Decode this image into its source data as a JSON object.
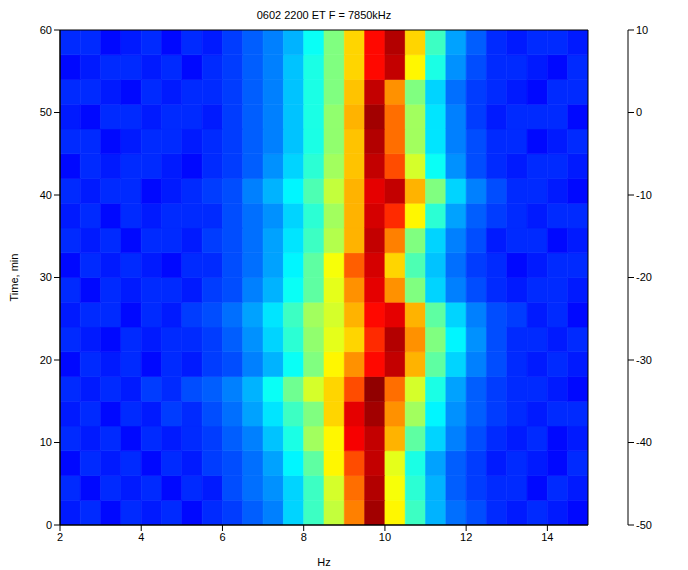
{
  "chart_data": {
    "type": "heatmap",
    "title": "0602 2200 ET F = 7850kHz",
    "x_label": "Hz",
    "y_label": "Time, min",
    "xlim": [
      2,
      15
    ],
    "xticks": [
      2,
      4,
      6,
      8,
      10,
      12,
      14
    ],
    "ylim": [
      0,
      60
    ],
    "yticks": [
      0,
      10,
      20,
      30,
      40,
      50,
      60
    ],
    "x_edges": [
      2,
      2.5,
      3,
      3.5,
      4,
      4.5,
      5,
      5.5,
      6,
      6.5,
      7,
      7.5,
      8,
      8.5,
      9,
      9.5,
      10,
      10.5,
      11,
      11.5,
      12,
      12.5,
      13,
      13.5,
      14,
      14.5,
      15
    ],
    "y_edges": [
      0,
      3,
      6,
      9,
      12,
      15,
      18,
      21,
      24,
      27,
      30,
      33,
      36,
      39,
      42,
      45,
      48,
      51,
      54,
      57,
      60
    ],
    "cells": [
      [
        -41,
        -40,
        -42,
        -40,
        -41,
        -40,
        -42,
        -40,
        -39,
        -37,
        -35,
        -30,
        -24,
        -16,
        -5,
        8,
        -12,
        -24,
        -32,
        -36,
        -38,
        -40,
        -41,
        -40,
        -41,
        -42
      ],
      [
        -40,
        -42,
        -40,
        -41,
        -40,
        -42,
        -40,
        -41,
        -38,
        -36,
        -34,
        -30,
        -24,
        -15,
        -4,
        7,
        -13,
        -25,
        -32,
        -37,
        -39,
        -40,
        -40,
        -42,
        -40,
        -41
      ],
      [
        -42,
        -40,
        -41,
        -40,
        -42,
        -40,
        -41,
        -39,
        -38,
        -36,
        -33,
        -28,
        -22,
        -12,
        -2,
        6,
        -14,
        -26,
        -33,
        -37,
        -39,
        -41,
        -40,
        -41,
        -42,
        -40
      ],
      [
        -40,
        -41,
        -40,
        -42,
        -40,
        -41,
        -40,
        -39,
        -37,
        -35,
        -31,
        -26,
        -18,
        -12,
        3,
        6,
        -8,
        -22,
        -30,
        -35,
        -38,
        -40,
        -41,
        -40,
        -42,
        -41
      ],
      [
        -41,
        -40,
        -42,
        -40,
        -41,
        -39,
        -40,
        -38,
        -36,
        -33,
        -29,
        -24,
        -20,
        -10,
        4,
        8,
        -6,
        -18,
        -28,
        -34,
        -37,
        -39,
        -40,
        -41,
        -40,
        -40
      ],
      [
        -40,
        -41,
        -40,
        -41,
        -39,
        -40,
        -38,
        -37,
        -35,
        -32,
        -27,
        -21,
        -15,
        -10,
        -2,
        9,
        -4,
        -15,
        -26,
        -33,
        -37,
        -39,
        -40,
        -40,
        -41,
        -42
      ],
      [
        -42,
        -40,
        -41,
        -40,
        -42,
        -40,
        -41,
        -39,
        -38,
        -35,
        -32,
        -27,
        -20,
        -12,
        -6,
        2,
        6,
        -8,
        -22,
        -30,
        -35,
        -38,
        -40,
        -41,
        -40,
        -41
      ],
      [
        -40,
        -41,
        -42,
        -40,
        -41,
        -40,
        -40,
        -39,
        -37,
        -34,
        -30,
        -25,
        -19,
        -14,
        -10,
        0,
        7,
        -6,
        -20,
        -28,
        -34,
        -38,
        -40,
        -40,
        -41,
        -40
      ],
      [
        -41,
        -40,
        -40,
        -42,
        -40,
        -41,
        -39,
        -38,
        -36,
        -33,
        -29,
        -24,
        -18,
        -15,
        -8,
        2,
        4,
        -8,
        -22,
        -30,
        -35,
        -38,
        -39,
        -41,
        -40,
        -42
      ],
      [
        -40,
        -42,
        -40,
        -41,
        -40,
        -40,
        -41,
        -39,
        -38,
        -35,
        -32,
        -27,
        -22,
        -14,
        -6,
        4,
        -6,
        -20,
        -30,
        -35,
        -38,
        -40,
        -41,
        -40,
        -40,
        -41
      ],
      [
        -42,
        -40,
        -41,
        -40,
        -41,
        -42,
        -40,
        -40,
        -38,
        -36,
        -33,
        -28,
        -22,
        -13,
        -3,
        5,
        -10,
        -23,
        -31,
        -36,
        -39,
        -40,
        -42,
        -41,
        -40,
        -40
      ],
      [
        -40,
        -41,
        -40,
        -42,
        -40,
        -40,
        -41,
        -39,
        -38,
        -36,
        -33,
        -29,
        -24,
        -17,
        -8,
        6,
        -5,
        -20,
        -30,
        -35,
        -38,
        -41,
        -40,
        -40,
        -42,
        -41
      ],
      [
        -41,
        -40,
        -42,
        -40,
        -41,
        -40,
        -40,
        -40,
        -38,
        -36,
        -34,
        -30,
        -25,
        -18,
        -8,
        5,
        0,
        -12,
        -25,
        -33,
        -37,
        -39,
        -40,
        -41,
        -40,
        -40
      ],
      [
        -40,
        -41,
        -40,
        -40,
        -42,
        -41,
        -40,
        -39,
        -38,
        -35,
        -32,
        -28,
        -23,
        -16,
        -8,
        4,
        6,
        -8,
        -20,
        -30,
        -35,
        -38,
        -40,
        -40,
        -41,
        -42
      ],
      [
        -42,
        -40,
        -41,
        -40,
        -40,
        -41,
        -42,
        -40,
        -39,
        -37,
        -34,
        -30,
        -25,
        -18,
        -9,
        6,
        -2,
        -15,
        -27,
        -34,
        -38,
        -40,
        -41,
        -40,
        -40,
        -41
      ],
      [
        -40,
        -40,
        -42,
        -41,
        -40,
        -40,
        -41,
        -40,
        -39,
        -37,
        -35,
        -31,
        -26,
        -19,
        -9,
        7,
        -4,
        -18,
        -29,
        -35,
        -38,
        -40,
        -40,
        -42,
        -41,
        -40
      ],
      [
        -41,
        -42,
        -40,
        -40,
        -41,
        -40,
        -40,
        -41,
        -39,
        -37,
        -35,
        -31,
        -26,
        -19,
        -8,
        8,
        -4,
        -18,
        -29,
        -35,
        -39,
        -41,
        -40,
        -40,
        -40,
        -42
      ],
      [
        -40,
        -40,
        -41,
        -42,
        -40,
        -41,
        -40,
        -40,
        -39,
        -37,
        -35,
        -31,
        -26,
        -20,
        -9,
        6,
        -6,
        -20,
        -30,
        -36,
        -39,
        -40,
        -41,
        -42,
        -40,
        -40
      ],
      [
        -42,
        -41,
        -40,
        -40,
        -41,
        -40,
        -42,
        -40,
        -39,
        -37,
        -35,
        -31,
        -26,
        -20,
        -10,
        2,
        6,
        -12,
        -26,
        -34,
        -38,
        -40,
        -40,
        -41,
        -42,
        -40
      ],
      [
        -40,
        -40,
        -42,
        -41,
        -40,
        -42,
        -40,
        -41,
        -39,
        -37,
        -35,
        -32,
        -27,
        -20,
        -10,
        2,
        7,
        -10,
        -24,
        -33,
        -37,
        -40,
        -41,
        -40,
        -40,
        -41
      ]
    ],
    "colorbar_lim": [
      -50,
      10
    ],
    "colorbar_ticks": [
      -50,
      -40,
      -30,
      -20,
      -10,
      0,
      10
    ]
  }
}
